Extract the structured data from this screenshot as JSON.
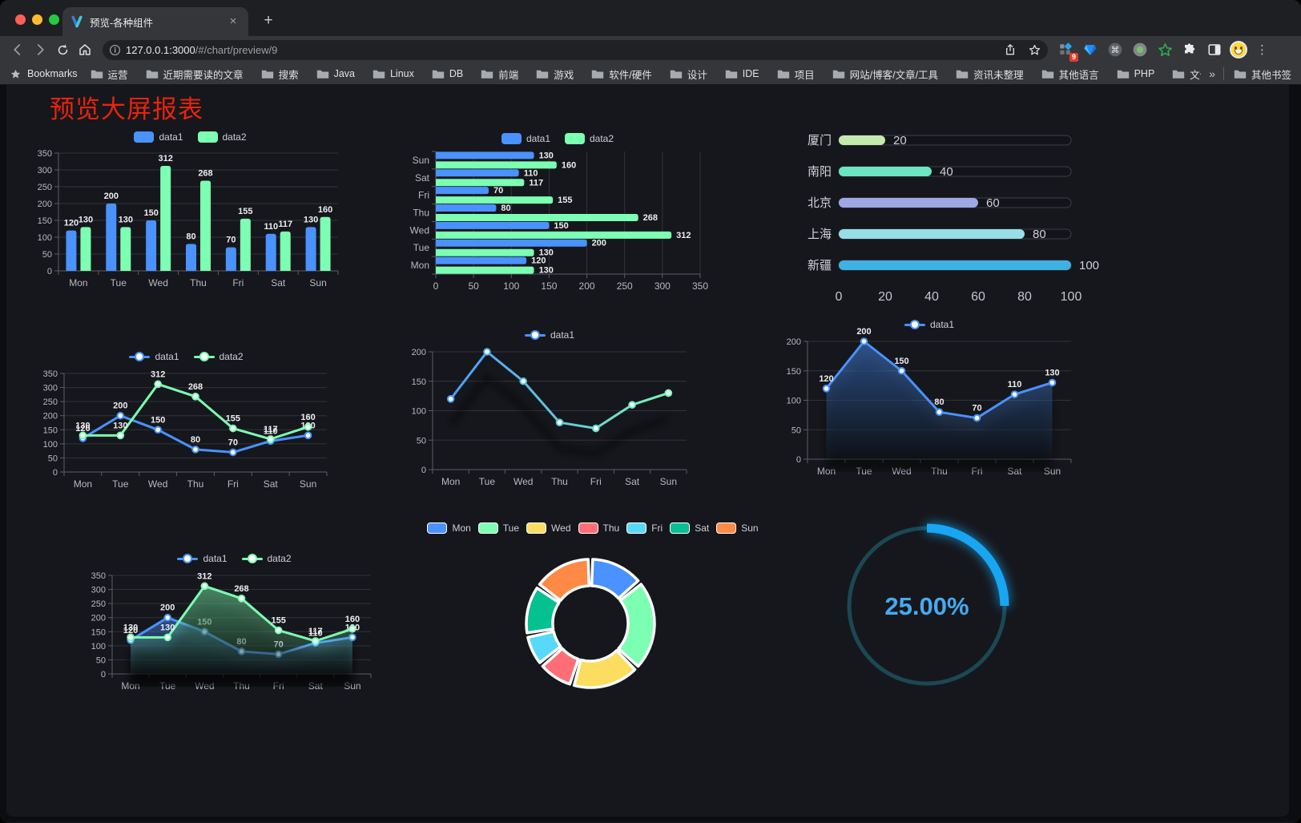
{
  "browser": {
    "tab_title": "预览-各种组件",
    "url_host": "127.0.0.1:3000",
    "url_path": "/#/chart/preview/9",
    "bookmarks_root_label": "Bookmarks",
    "bookmarks": [
      "运营",
      "近期需要读的文章",
      "搜索",
      "Java",
      "Linux",
      "DB",
      "前端",
      "游戏",
      "软件/硬件",
      "设计",
      "IDE",
      "项目",
      "网站/博客/文章/工具",
      "资讯未整理",
      "其他语言",
      "PHP",
      "文件服务器"
    ],
    "bookmarks_overflow": "»",
    "other_bookmarks_label": "其他书签",
    "extension_badge": "9",
    "tab_close_glyph": "×",
    "new_tab_glyph": "+",
    "menu_glyph": "⋮"
  },
  "page": {
    "title": "预览大屏报表",
    "title_color": "#e8230e"
  },
  "chart_data": [
    {
      "id": "bar-grouped",
      "type": "bar",
      "categories": [
        "Mon",
        "Tue",
        "Wed",
        "Thu",
        "Fri",
        "Sat",
        "Sun"
      ],
      "series": [
        {
          "name": "data1",
          "color": "#4992ff",
          "values": [
            120,
            200,
            150,
            80,
            70,
            110,
            130
          ]
        },
        {
          "name": "data2",
          "color": "#7cffb2",
          "values": [
            130,
            130,
            312,
            268,
            155,
            117,
            160
          ]
        }
      ],
      "ylim": [
        0,
        350
      ],
      "yticks": [
        0,
        50,
        100,
        150,
        200,
        250,
        300,
        350
      ],
      "grid": true,
      "legend_position": "top",
      "value_labels": true
    },
    {
      "id": "bar-horizontal",
      "type": "bar",
      "orientation": "horizontal",
      "categories": [
        "Mon",
        "Tue",
        "Wed",
        "Thu",
        "Fri",
        "Sat",
        "Sun"
      ],
      "series": [
        {
          "name": "data1",
          "color": "#4992ff",
          "values": [
            120,
            200,
            150,
            80,
            70,
            110,
            130
          ]
        },
        {
          "name": "data2",
          "color": "#7cffb2",
          "values": [
            130,
            130,
            312,
            268,
            155,
            117,
            160
          ]
        }
      ],
      "xlim": [
        0,
        350
      ],
      "xticks": [
        0,
        50,
        100,
        150,
        200,
        250,
        300,
        350
      ],
      "grid": true,
      "legend_position": "top",
      "value_labels": true
    },
    {
      "id": "progress-bars",
      "type": "bar",
      "orientation": "horizontal-progress",
      "items": [
        {
          "label": "厦门",
          "value": 20,
          "color": "#c4ebad"
        },
        {
          "label": "南阳",
          "value": 40,
          "color": "#6be6c1"
        },
        {
          "label": "北京",
          "value": 60,
          "color": "#a0a7e6"
        },
        {
          "label": "上海",
          "value": 80,
          "color": "#96dee8"
        },
        {
          "label": "新疆",
          "value": 100,
          "color": "#3fb1e3"
        }
      ],
      "xlim": [
        0,
        100
      ],
      "xticks": [
        0,
        20,
        40,
        60,
        80,
        100
      ]
    },
    {
      "id": "line-basic",
      "type": "line",
      "categories": [
        "Mon",
        "Tue",
        "Wed",
        "Thu",
        "Fri",
        "Sat",
        "Sun"
      ],
      "series": [
        {
          "name": "data1",
          "color": "#4992ff",
          "values": [
            120,
            200,
            150,
            80,
            70,
            110,
            130
          ],
          "labels": true
        },
        {
          "name": "data2",
          "color": "#7cffb2",
          "values": [
            130,
            130,
            312,
            268,
            155,
            117,
            160
          ],
          "labels": true
        }
      ],
      "ylim": [
        0,
        350
      ],
      "yticks": [
        0,
        50,
        100,
        150,
        200,
        250,
        300,
        350
      ],
      "grid": true,
      "legend_position": "top"
    },
    {
      "id": "line-gradient",
      "type": "line",
      "categories": [
        "Mon",
        "Tue",
        "Wed",
        "Thu",
        "Fri",
        "Sat",
        "Sun"
      ],
      "series": [
        {
          "name": "data1",
          "gradient": [
            "#4992ff",
            "#7cffb2"
          ],
          "color": "#4992ff",
          "values": [
            120,
            200,
            150,
            80,
            70,
            110,
            130
          ],
          "shadow": true
        }
      ],
      "ylim": [
        0,
        200
      ],
      "yticks": [
        0,
        50,
        100,
        150,
        200
      ],
      "grid": true,
      "legend_position": "top"
    },
    {
      "id": "line-area",
      "type": "area",
      "categories": [
        "Mon",
        "Tue",
        "Wed",
        "Thu",
        "Fri",
        "Sat",
        "Sun"
      ],
      "series": [
        {
          "name": "data1",
          "color": "#4992ff",
          "values": [
            120,
            200,
            150,
            80,
            70,
            110,
            130
          ],
          "area": true,
          "labels": true
        }
      ],
      "ylim": [
        0,
        200
      ],
      "yticks": [
        0,
        50,
        100,
        150,
        200
      ],
      "grid": true,
      "legend_position": "top"
    },
    {
      "id": "line-area-double",
      "type": "area",
      "categories": [
        "Mon",
        "Tue",
        "Wed",
        "Thu",
        "Fri",
        "Sat",
        "Sun"
      ],
      "series": [
        {
          "name": "data1",
          "color": "#4992ff",
          "values": [
            120,
            200,
            150,
            80,
            70,
            110,
            130
          ],
          "area": true,
          "labels": true
        },
        {
          "name": "data2",
          "color": "#7cffb2",
          "values": [
            130,
            130,
            312,
            268,
            155,
            117,
            160
          ],
          "area": true,
          "labels": true
        }
      ],
      "ylim": [
        0,
        350
      ],
      "yticks": [
        0,
        50,
        100,
        150,
        200,
        250,
        300,
        350
      ],
      "grid": true,
      "legend_position": "top"
    },
    {
      "id": "donut",
      "type": "pie",
      "donut": true,
      "legend_position": "top",
      "items": [
        {
          "label": "Mon",
          "value": 120,
          "color": "#4992ff"
        },
        {
          "label": "Tue",
          "value": 200,
          "color": "#7cffb2"
        },
        {
          "label": "Wed",
          "value": 150,
          "color": "#fddd60"
        },
        {
          "label": "Thu",
          "value": 80,
          "color": "#ff6e76"
        },
        {
          "label": "Fri",
          "value": 70,
          "color": "#58d9f9"
        },
        {
          "label": "Sat",
          "value": 110,
          "color": "#05c091"
        },
        {
          "label": "Sun",
          "value": 130,
          "color": "#ff8a45"
        }
      ]
    },
    {
      "id": "gauge",
      "type": "gauge",
      "percent": 25,
      "label": "25.00%",
      "color": "#18a6f2",
      "track_color": "#1b4854",
      "text_color": "#45abf2"
    }
  ]
}
